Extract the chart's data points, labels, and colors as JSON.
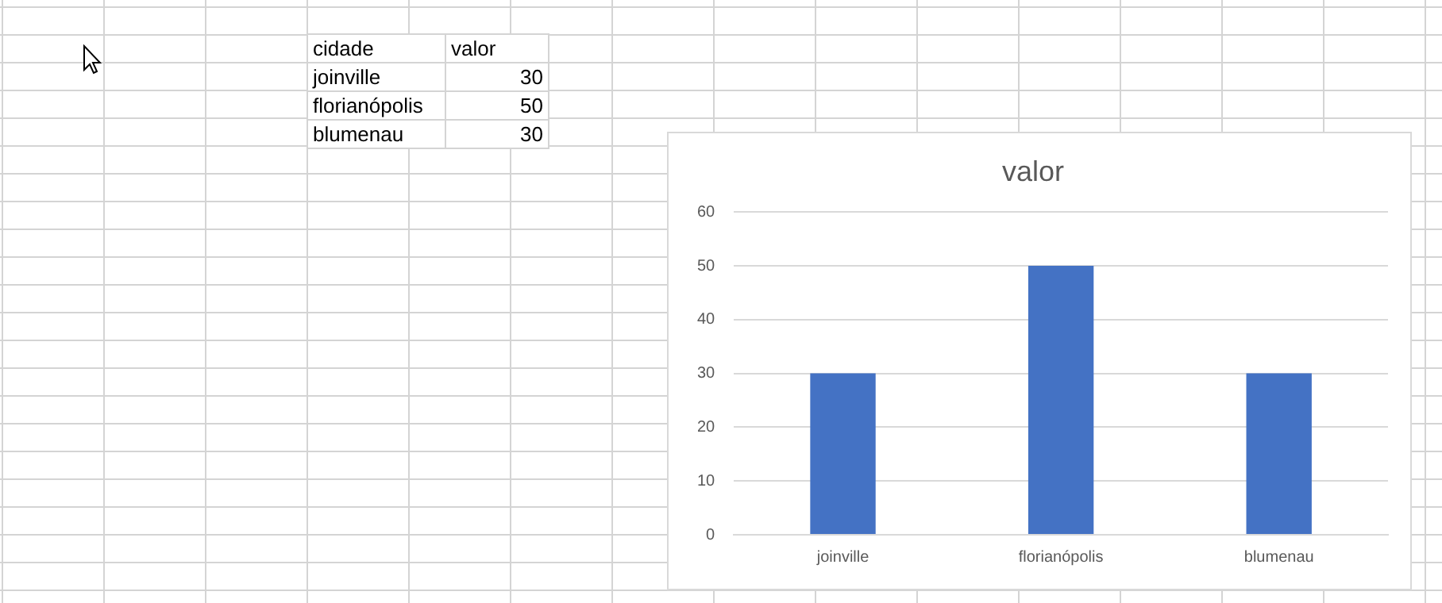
{
  "chart_data": [
    {
      "type": "other",
      "annotations": [
        "cidade",
        "valor",
        "joinville",
        "30",
        "florianópolis",
        "50",
        "blumenau",
        "30"
      ]
    },
    {
      "type": "bar",
      "title": "valor",
      "categories": [
        "joinville",
        "florianópolis",
        "blumenau"
      ],
      "values": [
        30,
        50,
        30
      ],
      "color": "#4472c4",
      "ylim": [
        0,
        60
      ],
      "yticks": [
        0,
        10,
        20,
        30,
        40,
        50,
        60
      ],
      "grid": "y"
    }
  ]
}
